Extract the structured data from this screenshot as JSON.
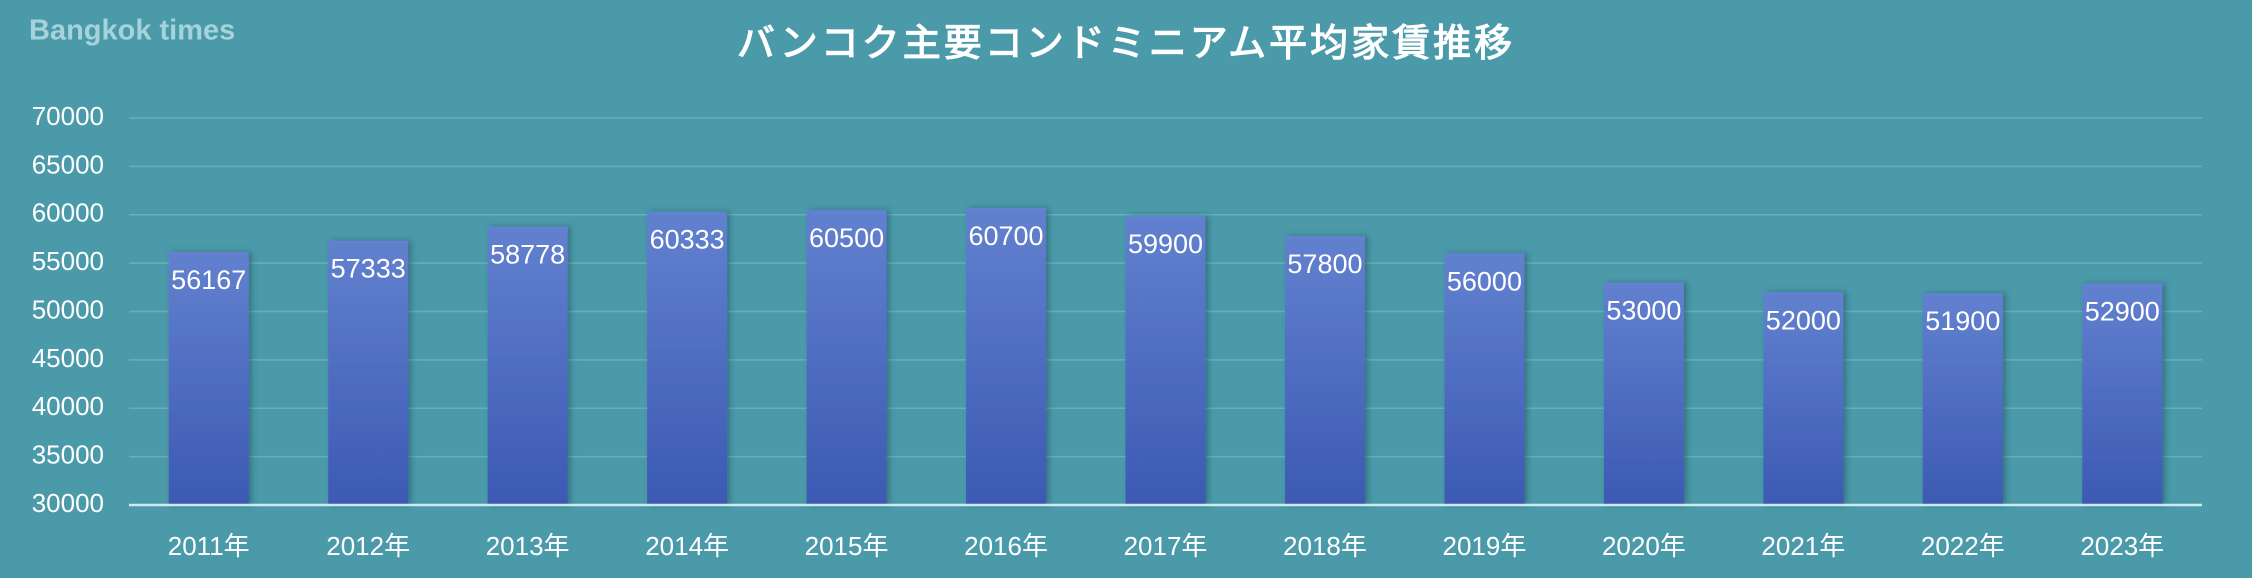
{
  "chart_data": {
    "type": "bar",
    "title": "バンコク主要コンドミニアム平均家賃推移",
    "watermark": "Bangkok times",
    "categories": [
      "2011年",
      "2012年",
      "2013年",
      "2014年",
      "2015年",
      "2016年",
      "2017年",
      "2018年",
      "2019年",
      "2020年",
      "2021年",
      "2022年",
      "2023年"
    ],
    "values": [
      56167,
      57333,
      58778,
      60333,
      60500,
      60700,
      59900,
      57800,
      56000,
      53000,
      52000,
      51900,
      52900
    ],
    "color": "#4a68c0",
    "ylim": [
      30000,
      70000
    ],
    "yticks": [
      30000,
      35000,
      40000,
      45000,
      50000,
      55000,
      60000,
      65000,
      70000
    ],
    "grid": true
  }
}
